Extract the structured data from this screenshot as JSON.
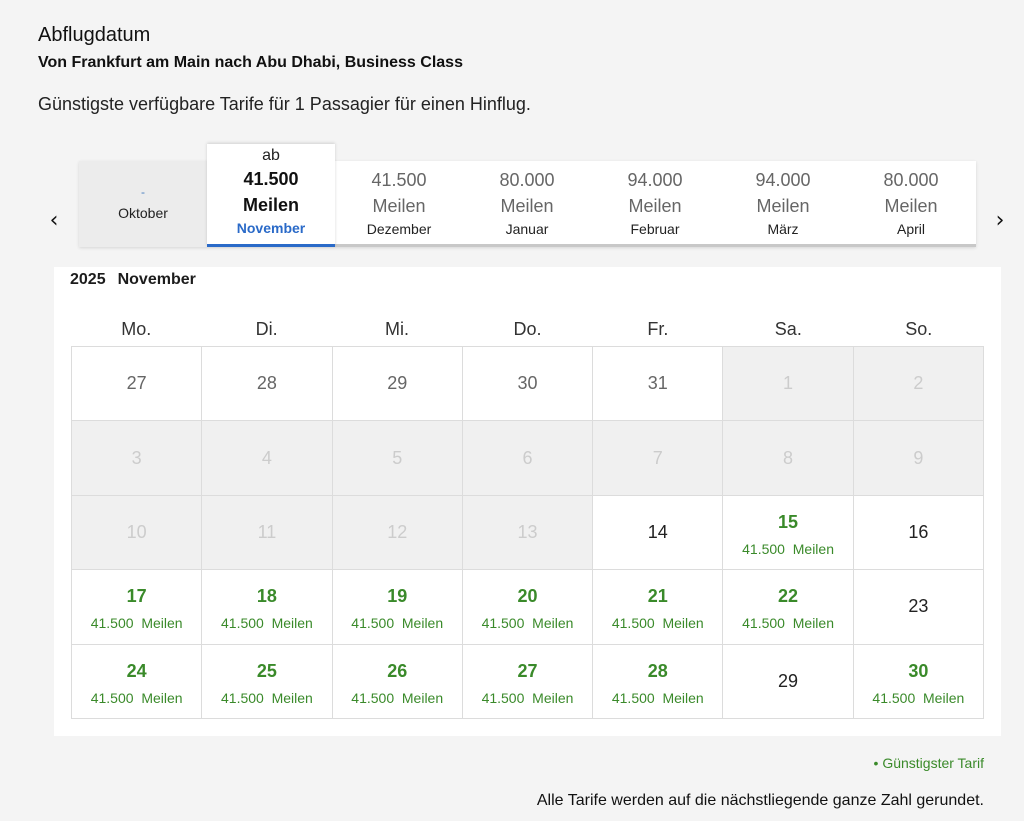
{
  "header": {
    "title": "Abflugdatum",
    "subtitle": "Von Frankfurt am Main nach Abu Dhabi, Business Class",
    "description": "Günstigste verfügbare Tarife für 1 Passagier für einen Hinflug."
  },
  "nav": {
    "prev": "‹",
    "next": "›"
  },
  "months": [
    {
      "name": "Oktober",
      "price": "-",
      "unit": "",
      "state": "disabled"
    },
    {
      "name": "November",
      "prefix": "ab",
      "price": "41.500",
      "unit": "Meilen",
      "state": "selected"
    },
    {
      "name": "Dezember",
      "price": "41.500",
      "unit": "Meilen",
      "state": "normal"
    },
    {
      "name": "Januar",
      "price": "80.000",
      "unit": "Meilen",
      "state": "normal"
    },
    {
      "name": "Februar",
      "price": "94.000",
      "unit": "Meilen",
      "state": "normal"
    },
    {
      "name": "März",
      "price": "94.000",
      "unit": "Meilen",
      "state": "normal"
    },
    {
      "name": "April",
      "price": "80.000",
      "unit": "Meilen",
      "state": "normal"
    }
  ],
  "calendar": {
    "year": "2025",
    "month": "November",
    "weekdays": [
      "Mo.",
      "Di.",
      "Mi.",
      "Do.",
      "Fr.",
      "Sa.",
      "So."
    ],
    "days": [
      {
        "d": "27",
        "s": "prev"
      },
      {
        "d": "28",
        "s": "prev"
      },
      {
        "d": "29",
        "s": "prev"
      },
      {
        "d": "30",
        "s": "prev"
      },
      {
        "d": "31",
        "s": "prev"
      },
      {
        "d": "1",
        "s": "disabled"
      },
      {
        "d": "2",
        "s": "disabled"
      },
      {
        "d": "3",
        "s": "disabled"
      },
      {
        "d": "4",
        "s": "disabled"
      },
      {
        "d": "5",
        "s": "disabled"
      },
      {
        "d": "6",
        "s": "disabled"
      },
      {
        "d": "7",
        "s": "disabled"
      },
      {
        "d": "8",
        "s": "disabled"
      },
      {
        "d": "9",
        "s": "disabled"
      },
      {
        "d": "10",
        "s": "disabled"
      },
      {
        "d": "11",
        "s": "disabled"
      },
      {
        "d": "12",
        "s": "disabled"
      },
      {
        "d": "13",
        "s": "disabled"
      },
      {
        "d": "14",
        "s": "plain"
      },
      {
        "d": "15",
        "s": "avail",
        "fare": "41.500  Meilen"
      },
      {
        "d": "16",
        "s": "plain"
      },
      {
        "d": "17",
        "s": "avail",
        "fare": "41.500  Meilen"
      },
      {
        "d": "18",
        "s": "avail",
        "fare": "41.500  Meilen"
      },
      {
        "d": "19",
        "s": "avail",
        "fare": "41.500  Meilen"
      },
      {
        "d": "20",
        "s": "avail",
        "fare": "41.500  Meilen"
      },
      {
        "d": "21",
        "s": "avail",
        "fare": "41.500  Meilen"
      },
      {
        "d": "22",
        "s": "avail",
        "fare": "41.500  Meilen"
      },
      {
        "d": "23",
        "s": "plain"
      },
      {
        "d": "24",
        "s": "avail",
        "fare": "41.500  Meilen"
      },
      {
        "d": "25",
        "s": "avail",
        "fare": "41.500  Meilen"
      },
      {
        "d": "26",
        "s": "avail",
        "fare": "41.500  Meilen"
      },
      {
        "d": "27",
        "s": "avail",
        "fare": "41.500  Meilen"
      },
      {
        "d": "28",
        "s": "avail",
        "fare": "41.500  Meilen"
      },
      {
        "d": "29",
        "s": "plain"
      },
      {
        "d": "30",
        "s": "avail",
        "fare": "41.500  Meilen"
      }
    ]
  },
  "legend": "• Günstigster Tarif",
  "note": "Alle Tarife werden auf die nächstliegende ganze Zahl gerundet.",
  "colors": {
    "accent": "#2a6ac8",
    "fare_green": "#3a8a2a"
  }
}
